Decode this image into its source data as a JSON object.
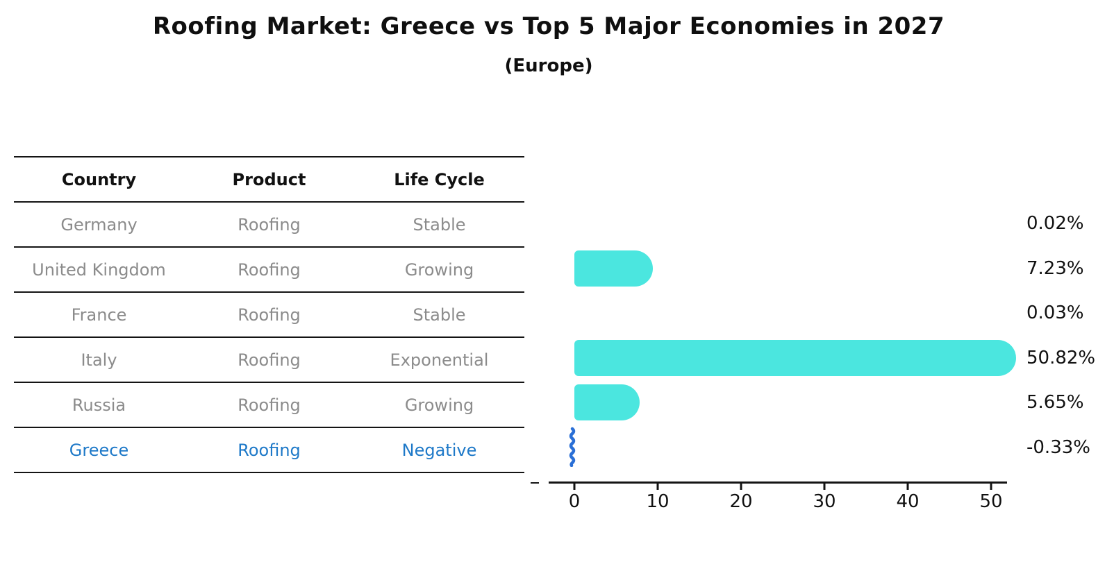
{
  "title": "Roofing Market: Greece vs Top 5 Major Economies in 2027",
  "subtitle": "(Europe)",
  "colors": {
    "bar": "#4BE6DF",
    "highlight_text": "#1E79C8",
    "negative_marker": "#2A6FD6",
    "row_text": "#8b8b8b",
    "line": "#141414"
  },
  "table": {
    "headers": [
      "Country",
      "Product",
      "Life Cycle"
    ],
    "rows": [
      {
        "country": "Germany",
        "product": "Roofing",
        "life_cycle": "Stable"
      },
      {
        "country": "United Kingdom",
        "product": "Roofing",
        "life_cycle": "Growing"
      },
      {
        "country": "France",
        "product": "Roofing",
        "life_cycle": "Stable"
      },
      {
        "country": "Italy",
        "product": "Roofing",
        "life_cycle": "Exponential"
      },
      {
        "country": "Russia",
        "product": "Roofing",
        "life_cycle": "Growing"
      },
      {
        "country": "Greece",
        "product": "Roofing",
        "life_cycle": "Negative"
      }
    ]
  },
  "chart_data": {
    "type": "bar",
    "orientation": "horizontal",
    "title": "Roofing Market: Greece vs Top 5 Major Economies in 2027 (Europe)",
    "categories": [
      "Germany",
      "United Kingdom",
      "France",
      "Italy",
      "Russia",
      "Greece"
    ],
    "values": [
      0.02,
      7.23,
      0.03,
      50.82,
      5.65,
      -0.33
    ],
    "labels": [
      "0.02%",
      "7.23%",
      "0.03%",
      "50.82%",
      "5.65%",
      "-0.33%"
    ],
    "xticks": [
      0,
      10,
      20,
      30,
      40,
      50
    ],
    "xlim": [
      -3,
      52
    ],
    "xlabel": "",
    "ylabel": "",
    "grid": false,
    "legend": "none",
    "highlighted_category": "Greece"
  }
}
